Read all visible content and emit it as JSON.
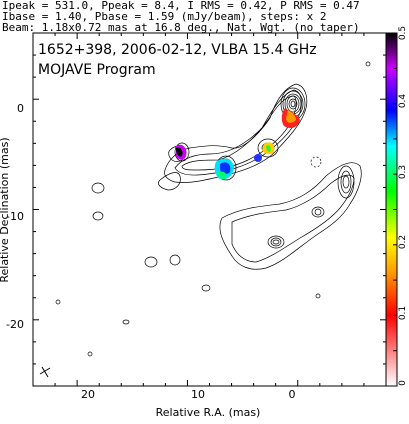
{
  "header": {
    "line1": "Ipeak = 531.0, Ppeak = 8.4, I RMS = 0.42, P RMS = 0.47",
    "line2": "Ibase = 1.40, Pbase = 1.59 (mJy/beam), steps: x 2",
    "line3": "Beam: 1.18x0.72 mas at 16.8 deg., Nat. Wgt. (no taper)"
  },
  "chart_data": {
    "type": "contour",
    "title": "1652+398, 2006-02-12, VLBA 15.4 GHz",
    "subtitle": "MOJAVE Program",
    "xlabel": "Relative R.A. (mas)",
    "ylabel": "Relative Declination (mas)",
    "xlim": [
      24,
      -8
    ],
    "ylim": [
      -26,
      6
    ],
    "x_ticks": [
      20,
      10,
      0
    ],
    "y_ticks": [
      0,
      -10,
      -20
    ],
    "x_tick_labels": [
      "20",
      "10",
      "0"
    ],
    "y_tick_labels": [
      "0",
      "-10",
      "-20"
    ],
    "colorbar": {
      "range": [
        0,
        0.5
      ],
      "ticks": [
        0,
        0.1,
        0.2,
        0.3,
        0.4,
        0.5
      ],
      "tick_labels": [
        "0",
        "0.1",
        "0.2",
        "0.3",
        "0.4",
        "0.5"
      ]
    },
    "core": {
      "x": 0,
      "y": 0,
      "peak_mJy_beam": 531.0
    },
    "polarization_spots": [
      {
        "x": 0.2,
        "y": -0.6,
        "value": 0.08
      },
      {
        "x": 2.4,
        "y": -3.8,
        "value": 0.22
      },
      {
        "x": 3.1,
        "y": -4.4,
        "value": 0.4
      },
      {
        "x": 6.0,
        "y": -5.6,
        "value": 0.34
      },
      {
        "x": 10.2,
        "y": -4.0,
        "value": 0.45
      }
    ]
  }
}
